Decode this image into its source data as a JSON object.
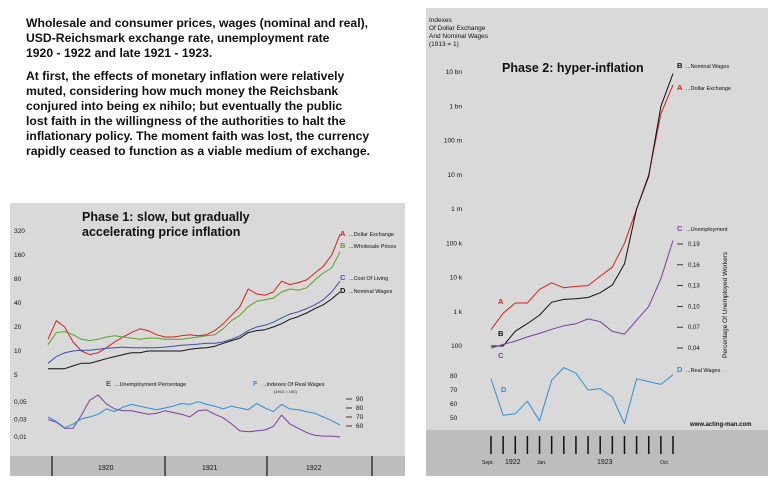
{
  "intro": {
    "title_lines": [
      "Wholesale and consumer prices, wages (nominal and real),",
      "USD-Reichsmark exchange rate, unemployment rate",
      "1920 - 1922 and late 1921 - 1923."
    ],
    "body_lines": [
      "At first, the effects of monetary inflation were relatively",
      "muted, considering how much money the Reichsbank",
      "conjured into being ex nihilo; but eventually the public",
      "lost faith in the willingness of the authorities to halt the",
      "inflationary policy. The moment faith was lost, the currency",
      "rapidly ceased to function as a viable medium of exchange."
    ]
  },
  "colors": {
    "dollar": "#d42020",
    "wholesale": "#5aa02c",
    "living": "#3a4fa8",
    "nominal": "#111111",
    "unemployment": "#7b3f9e",
    "real_wages": "#2d8fd5",
    "panel": "#d9d9d9",
    "timeline": "#bdbdbd"
  },
  "chart_data": [
    {
      "type": "line",
      "title": "Phase 1: slow, but gradually accelerating price inflation",
      "title_lines": [
        "Phase 1: slow, but gradually",
        "accelerating price inflation"
      ],
      "top_yscale": "log",
      "top_yticks": [
        "320",
        "160",
        "80",
        "40",
        "20",
        "10",
        "5"
      ],
      "top_ytick_values": [
        320,
        160,
        80,
        40,
        20,
        10,
        5
      ],
      "bottom_left_yticks": [
        "0,05",
        "0,03",
        "0,01"
      ],
      "bottom_left_ytick_values": [
        0.05,
        0.03,
        0.01
      ],
      "bottom_right_yticks": [
        "90",
        "80",
        "70",
        "60"
      ],
      "bottom_right_ytick_values": [
        90,
        80,
        70,
        60
      ],
      "right_axis_note": "(1913 = 100)",
      "years": [
        "1920",
        "1921",
        "1922"
      ],
      "x": [
        1,
        2,
        3,
        4,
        5,
        6,
        7,
        8,
        9,
        10,
        11,
        12,
        13,
        14,
        15,
        16,
        17,
        18,
        19,
        20,
        21,
        22,
        23,
        24,
        25,
        26,
        27,
        28,
        29,
        30,
        31,
        32,
        33,
        34,
        35,
        36
      ],
      "series": [
        {
          "letter": "A",
          "name": "...Dollar Exchange",
          "color_key": "dollar",
          "axis": "log",
          "values": [
            14,
            24,
            20,
            13,
            10,
            9,
            9.5,
            11,
            13,
            15,
            17,
            19,
            18,
            16,
            15,
            15,
            15.5,
            16,
            15.5,
            16,
            18,
            22,
            28,
            36,
            60,
            52,
            50,
            55,
            75,
            68,
            72,
            78,
            95,
            115,
            160,
            290
          ]
        },
        {
          "letter": "B",
          "name": "...Wholesale Prices",
          "color_key": "wholesale",
          "axis": "log",
          "values": [
            12,
            17,
            17.5,
            16,
            14,
            13.5,
            14,
            15,
            15.5,
            15,
            14.5,
            14,
            14.5,
            14.5,
            14,
            14,
            14,
            14.5,
            15,
            15.5,
            16,
            19,
            24,
            28,
            36,
            42,
            44,
            46,
            55,
            60,
            58,
            62,
            78,
            95,
            110,
            175
          ]
        },
        {
          "letter": "C",
          "name": "...Cost Of Living",
          "color_key": "living",
          "axis": "log",
          "values": [
            7,
            8.5,
            9.5,
            10,
            10.2,
            10.2,
            10.5,
            10.8,
            11,
            11.2,
            11,
            11,
            11,
            11,
            11.2,
            11.5,
            11.8,
            12,
            12.2,
            12.5,
            12.5,
            13,
            14,
            15.5,
            18,
            20,
            21,
            23,
            26,
            29,
            31,
            34,
            38,
            44,
            55,
            75
          ]
        },
        {
          "letter": "D",
          "name": "...Nominal Wages",
          "color_key": "nominal",
          "axis": "log",
          "values": [
            6,
            6,
            6,
            6.5,
            7,
            7,
            7.5,
            8,
            8.5,
            9,
            9.5,
            9.5,
            10,
            10,
            10,
            10,
            10,
            10.5,
            10.8,
            11,
            11.5,
            12.5,
            13.5,
            14.5,
            17,
            18,
            18.5,
            20,
            22,
            25,
            27,
            30,
            34,
            38,
            45,
            55
          ]
        },
        {
          "letter": "E",
          "name": "...Unemployment Percentage",
          "color_key": "unemployment",
          "axis": "left_bottom",
          "values": [
            0.03,
            0.027,
            0.02,
            0.02,
            0.035,
            0.052,
            0.058,
            0.048,
            0.042,
            0.04,
            0.04,
            0.038,
            0.036,
            0.037,
            0.04,
            0.038,
            0.036,
            0.033,
            0.04,
            0.041,
            0.036,
            0.032,
            0.025,
            0.017,
            0.016,
            0.017,
            0.018,
            0.022,
            0.035,
            0.025,
            0.02,
            0.015,
            0.012,
            0.011,
            0.011,
            0.01
          ]
        },
        {
          "letter": "F",
          "name": "...Indexes Of Real Wages",
          "color_key": "real_wages",
          "axis": "right_bottom",
          "values": [
            70,
            65,
            58,
            62,
            68,
            70,
            73,
            79,
            76,
            81,
            84,
            82,
            80,
            78,
            80,
            82,
            85,
            84,
            87,
            84,
            82,
            79,
            82,
            80,
            78,
            85,
            80,
            76,
            84,
            79,
            78,
            76,
            74,
            70,
            66,
            61
          ]
        }
      ]
    },
    {
      "type": "line",
      "title": "Phase 2: hyper-inflation",
      "y_axis_label_lines": [
        "Indexes",
        "Of Dollar Exchange",
        "And Nominal Wages",
        "(1913 = 1)"
      ],
      "yscale": "log",
      "yticks": [
        "10 bn",
        "1 bn",
        "100 m",
        "10 m",
        "1 m",
        "100 k",
        "10 k",
        "1 k",
        "100"
      ],
      "ytick_values": [
        10000000000,
        1000000000,
        100000000,
        10000000,
        1000000,
        100000,
        10000,
        1000,
        100
      ],
      "right_axis_label": "Percentage Of Unemployed Workers",
      "right_yticks": [
        "0,19",
        "0,16",
        "0,13",
        "0,10",
        "0,07",
        "0,04"
      ],
      "right_ytick_values": [
        0.19,
        0.16,
        0.13,
        0.1,
        0.07,
        0.04
      ],
      "bottom_yticks": [
        "80",
        "70",
        "60",
        "50"
      ],
      "bottom_ytick_values": [
        80,
        70,
        60,
        50
      ],
      "x_labels": [
        "Sept.",
        "1922",
        "Jan.",
        "1923",
        "Oct."
      ],
      "x": [
        1,
        2,
        3,
        4,
        5,
        6,
        7,
        8,
        9,
        10,
        11,
        12,
        13,
        14,
        15,
        16
      ],
      "series": [
        {
          "letter": "A",
          "name": "...Dollar Exchange",
          "color_key": "dollar",
          "axis": "log",
          "values": [
            300,
            900,
            1800,
            1800,
            4500,
            7000,
            5000,
            5500,
            5800,
            11000,
            20000,
            100000,
            1000000,
            10000000,
            600000000,
            4200000000
          ]
        },
        {
          "letter": "B",
          "name": "...Nominal Wages",
          "color_key": "nominal",
          "axis": "log",
          "values": [
            100,
            100,
            270,
            450,
            800,
            1900,
            2300,
            2400,
            2600,
            3600,
            6000,
            25000,
            1000000,
            9000000,
            1000000000,
            9000000000
          ]
        },
        {
          "letter": "C",
          "name": "...Unemployment",
          "color_key": "unemployment",
          "axis": "right",
          "values": [
            0.04,
            0.045,
            0.05,
            0.056,
            0.061,
            0.067,
            0.072,
            0.075,
            0.082,
            0.078,
            0.064,
            0.06,
            0.08,
            0.1,
            0.14,
            0.195
          ]
        },
        {
          "letter": "D",
          "name": "...Real Wages",
          "color_key": "real_wages",
          "axis": "bottom",
          "values": [
            78,
            52,
            53,
            62,
            48,
            77,
            86,
            82,
            70,
            71,
            65,
            46,
            78,
            76,
            74,
            81
          ]
        }
      ]
    }
  ],
  "footer": {
    "site": "www.acting-man.com"
  }
}
